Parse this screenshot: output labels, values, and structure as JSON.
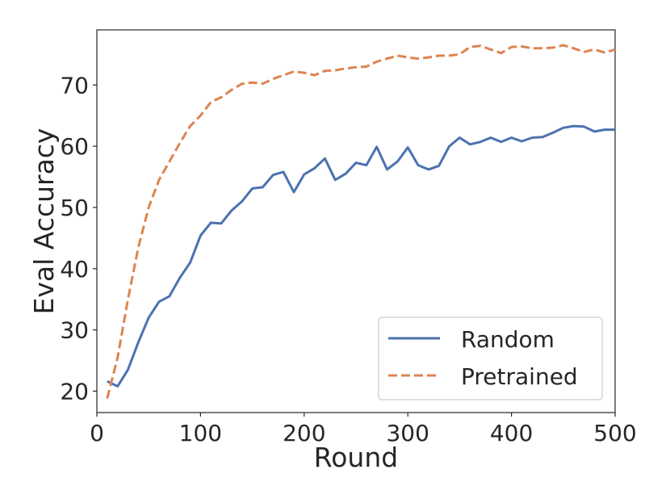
{
  "chart_data": {
    "type": "line",
    "title": "",
    "xlabel": "Round",
    "ylabel": "Eval Accuracy",
    "xlim": [
      0,
      500
    ],
    "ylim": [
      16.5,
      79
    ],
    "xticks": [
      0,
      100,
      200,
      300,
      400,
      500
    ],
    "yticks": [
      20,
      30,
      40,
      50,
      60,
      70
    ],
    "grid": false,
    "legend_position": "bottom-right",
    "series": [
      {
        "name": "Random",
        "color": "#4c72b0",
        "dash": "solid",
        "x": [
          10,
          20,
          30,
          40,
          50,
          60,
          70,
          80,
          90,
          100,
          110,
          120,
          130,
          140,
          150,
          160,
          170,
          180,
          190,
          200,
          210,
          220,
          230,
          240,
          250,
          260,
          270,
          280,
          290,
          300,
          310,
          320,
          330,
          340,
          350,
          360,
          370,
          380,
          390,
          400,
          410,
          420,
          430,
          440,
          450,
          460,
          470,
          480,
          490,
          500
        ],
        "y": [
          21.6,
          20.8,
          23.5,
          28.0,
          32.0,
          34.6,
          35.5,
          38.5,
          41.0,
          45.4,
          47.5,
          47.4,
          49.5,
          51.0,
          53.1,
          53.3,
          55.3,
          55.8,
          52.5,
          55.4,
          56.4,
          58.0,
          54.5,
          55.5,
          57.3,
          56.9,
          59.9,
          56.2,
          57.5,
          59.8,
          56.9,
          56.2,
          56.8,
          60.0,
          61.4,
          60.3,
          60.7,
          61.4,
          60.7,
          61.4,
          60.8,
          61.4,
          61.5,
          62.2,
          63.0,
          63.3,
          63.2,
          62.4,
          62.7,
          62.7
        ]
      },
      {
        "name": "Pretrained",
        "color": "#dd8452",
        "dash": "dashed",
        "x": [
          10,
          20,
          30,
          40,
          50,
          60,
          70,
          80,
          90,
          100,
          110,
          120,
          130,
          140,
          150,
          160,
          170,
          180,
          190,
          200,
          210,
          220,
          230,
          240,
          250,
          260,
          270,
          280,
          290,
          300,
          310,
          320,
          330,
          340,
          350,
          360,
          370,
          380,
          390,
          400,
          410,
          420,
          430,
          440,
          450,
          460,
          470,
          480,
          490,
          500
        ],
        "y": [
          18.8,
          25.5,
          35.0,
          43.5,
          50.0,
          54.5,
          57.5,
          60.5,
          63.3,
          65.0,
          67.2,
          68.0,
          69.2,
          70.2,
          70.4,
          70.2,
          71.0,
          71.6,
          72.2,
          72.0,
          71.6,
          72.3,
          72.4,
          72.7,
          72.9,
          73.0,
          73.8,
          74.3,
          74.8,
          74.5,
          74.3,
          74.5,
          74.8,
          74.8,
          75.0,
          76.2,
          76.4,
          75.8,
          75.2,
          76.2,
          76.3,
          76.0,
          76.0,
          76.1,
          76.5,
          76.0,
          75.4,
          75.8,
          75.3,
          75.8
        ]
      }
    ]
  }
}
